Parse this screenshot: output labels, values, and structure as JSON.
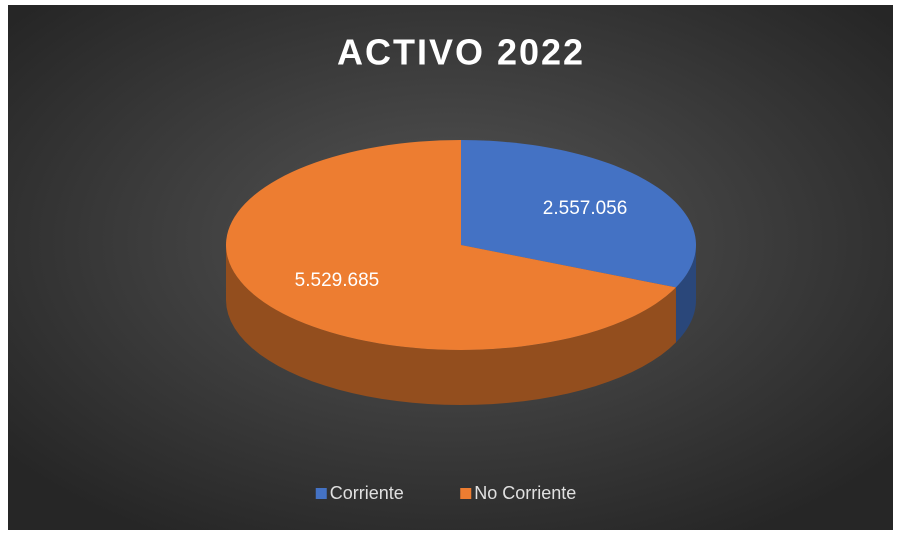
{
  "chart_data": {
    "type": "pie",
    "title": "ACTIVO 2022",
    "categories": [
      "Corriente",
      "No Corriente"
    ],
    "values": [
      2557056,
      5529685
    ],
    "value_labels": [
      "2.557.056",
      "5.529.685"
    ],
    "colors": [
      "#4472c4",
      "#ed7d31"
    ],
    "legend": "bottom"
  }
}
